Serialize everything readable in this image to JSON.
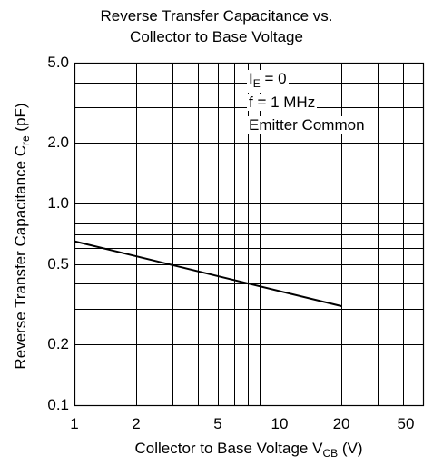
{
  "chart_data": {
    "type": "line",
    "title_lines": [
      "Reverse Transfer Capacitance vs.",
      "Collector to Base Voltage"
    ],
    "xlabel": {
      "text": "Collector to Base Voltage  V",
      "sub": "CB",
      "unit": "  (V)"
    },
    "ylabel": {
      "text": "Reverse Transfer Capacitance  C",
      "sub": "re",
      "unit": "  (pF)"
    },
    "x_scale": "log",
    "y_scale": "log",
    "xlim": [
      1,
      50
    ],
    "ylim": [
      0.1,
      5.0
    ],
    "x_ticks": [
      {
        "value": 1,
        "label": "1"
      },
      {
        "value": 2,
        "label": "2"
      },
      {
        "value": 5,
        "label": "5"
      },
      {
        "value": 10,
        "label": "10"
      },
      {
        "value": 20,
        "label": "20"
      },
      {
        "value": 50,
        "label": "50"
      }
    ],
    "y_ticks": [
      {
        "value": 5.0,
        "label": "5.0"
      },
      {
        "value": 2.0,
        "label": "2.0"
      },
      {
        "value": 1.0,
        "label": "1.0"
      },
      {
        "value": 0.5,
        "label": "0.5"
      },
      {
        "value": 0.2,
        "label": "0.2"
      },
      {
        "value": 0.1,
        "label": "0.1"
      }
    ],
    "x_grid": [
      2,
      3,
      4,
      5,
      6,
      7,
      8,
      9,
      10,
      20,
      30,
      40
    ],
    "y_grid": [
      0.2,
      0.3,
      0.4,
      0.5,
      0.6,
      0.7,
      0.8,
      0.9,
      1.0,
      2.0,
      3.0,
      4.0
    ],
    "grid": true,
    "series": [
      {
        "x": [
          1,
          20
        ],
        "y": [
          0.65,
          0.31
        ]
      }
    ],
    "annotations": [
      {
        "text": "I",
        "sub": "E",
        "rest": " = 0"
      },
      {
        "text": "f = 1 MHz"
      },
      {
        "text": "Emitter Common"
      }
    ],
    "colors": {
      "line": "#000000",
      "grid": "#000000",
      "background": "#ffffff"
    }
  }
}
